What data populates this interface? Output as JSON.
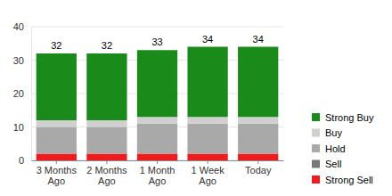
{
  "chart_data": {
    "type": "bar",
    "stacked": true,
    "grid": true,
    "legend": "right",
    "categories": [
      "3 Months Ago",
      "2 Months Ago",
      "1 Month Ago",
      "1 Week Ago",
      "Today"
    ],
    "series": [
      {
        "name": "Strong Sell",
        "color": "#ee1c1c",
        "values": [
          2,
          2,
          2,
          2,
          2
        ]
      },
      {
        "name": "Sell",
        "color": "#777777",
        "values": [
          0,
          0,
          0,
          0,
          0
        ]
      },
      {
        "name": "Hold",
        "color": "#a9a9a9",
        "values": [
          8,
          8,
          9,
          9,
          9
        ]
      },
      {
        "name": "Buy",
        "color": "#d0d0d0",
        "values": [
          2,
          2,
          2,
          2,
          2
        ]
      },
      {
        "name": "Strong Buy",
        "color": "#1a8a1a",
        "values": [
          20,
          20,
          20,
          21,
          21
        ]
      }
    ],
    "totals": [
      32,
      32,
      33,
      34,
      34
    ],
    "ylim": [
      0,
      40
    ],
    "yticks": [
      0,
      10,
      20,
      30,
      40
    ]
  }
}
